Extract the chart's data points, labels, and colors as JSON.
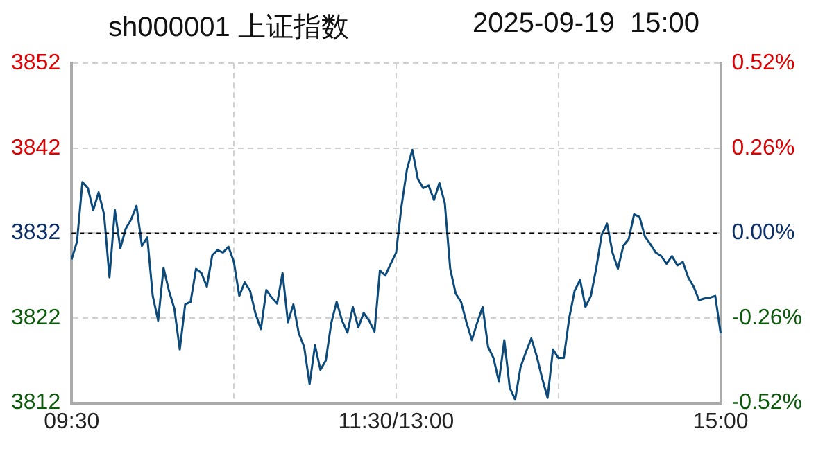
{
  "chart_data": {
    "type": "line",
    "title": "sh000001 上证指数",
    "subtitle": "2025-09-19  15:00",
    "categories": [
      "09:30",
      null,
      null,
      null,
      null,
      null,
      null,
      null,
      null,
      null,
      null,
      null,
      null,
      null,
      null,
      null,
      null,
      null,
      null,
      null,
      null,
      null,
      null,
      null,
      null,
      null,
      null,
      null,
      null,
      null,
      null,
      null,
      null,
      null,
      null,
      null,
      null,
      null,
      null,
      null,
      null,
      null,
      null,
      null,
      null,
      null,
      null,
      null,
      null,
      null,
      null,
      null,
      null,
      null,
      null,
      null,
      null,
      null,
      null,
      null,
      "11:30/13:00",
      null,
      null,
      null,
      null,
      null,
      null,
      null,
      null,
      null,
      null,
      null,
      null,
      null,
      null,
      null,
      null,
      null,
      null,
      null,
      null,
      null,
      null,
      null,
      null,
      null,
      null,
      null,
      null,
      null,
      null,
      null,
      null,
      null,
      null,
      null,
      null,
      null,
      null,
      null,
      null,
      null,
      null,
      null,
      null,
      null,
      null,
      null,
      null,
      null,
      null,
      null,
      null,
      null,
      null,
      null,
      null,
      null,
      null,
      null,
      "15:00"
    ],
    "series": [
      {
        "color": "#0b4a7a",
        "values": [
          3828.9,
          3831.0,
          3838.0,
          3837.3,
          3834.7,
          3836.8,
          3834.2,
          3826.8,
          3834.7,
          3830.2,
          3832.5,
          3833.6,
          3835.2,
          3830.5,
          3831.5,
          3824.6,
          3821.7,
          3827.9,
          3825.2,
          3823.1,
          3818.3,
          3823.6,
          3823.9,
          3827.8,
          3827.3,
          3825.7,
          3829.4,
          3830.0,
          3829.7,
          3830.4,
          3828.6,
          3824.6,
          3826.2,
          3825.2,
          3822.5,
          3820.7,
          3825.3,
          3824.4,
          3823.7,
          3827.3,
          3821.5,
          3823.6,
          3820.2,
          3818.6,
          3814.2,
          3818.8,
          3815.9,
          3817.0,
          3821.4,
          3823.9,
          3821.7,
          3820.3,
          3823.3,
          3820.9,
          3822.6,
          3821.7,
          3820.4,
          3827.6,
          3827.0,
          3828.4,
          3829.7,
          3835.2,
          3839.5,
          3841.8,
          3838.4,
          3837.3,
          3837.6,
          3835.9,
          3837.9,
          3835.5,
          3827.8,
          3824.9,
          3823.9,
          3821.5,
          3819.4,
          3821.5,
          3823.3,
          3818.6,
          3817.3,
          3814.5,
          3819.4,
          3813.8,
          3812.4,
          3816.2,
          3818.0,
          3819.6,
          3817.5,
          3814.9,
          3812.6,
          3818.3,
          3817.3,
          3817.3,
          3822.0,
          3825.2,
          3826.5,
          3823.3,
          3824.6,
          3827.9,
          3831.8,
          3833.1,
          3829.7,
          3827.8,
          3830.5,
          3831.3,
          3834.2,
          3833.9,
          3831.6,
          3830.7,
          3829.7,
          3829.3,
          3828.4,
          3829.3,
          3828.2,
          3828.6,
          3826.8,
          3825.7,
          3824.1,
          3824.3,
          3824.4,
          3824.6,
          3820.2
        ]
      }
    ],
    "ylim": [
      3812,
      3852
    ],
    "yticks": [
      3812,
      3822,
      3832,
      3842,
      3852
    ],
    "y2lim": [
      -0.52,
      0.52
    ],
    "y2ticks": [
      {
        "value": -0.52,
        "label": "-0.52%"
      },
      {
        "value": -0.26,
        "label": "-0.26%"
      },
      {
        "value": 0,
        "label": "0.00%"
      },
      {
        "value": 0.26,
        "label": "0.26%"
      },
      {
        "value": 0.52,
        "label": "0.52%"
      }
    ],
    "ref_lines": [
      {
        "axis": "y",
        "value": 3832,
        "color": "#000000",
        "line_style": "dashed"
      }
    ],
    "grid": true,
    "legend": false,
    "marker": "none",
    "line_style": "solid"
  }
}
